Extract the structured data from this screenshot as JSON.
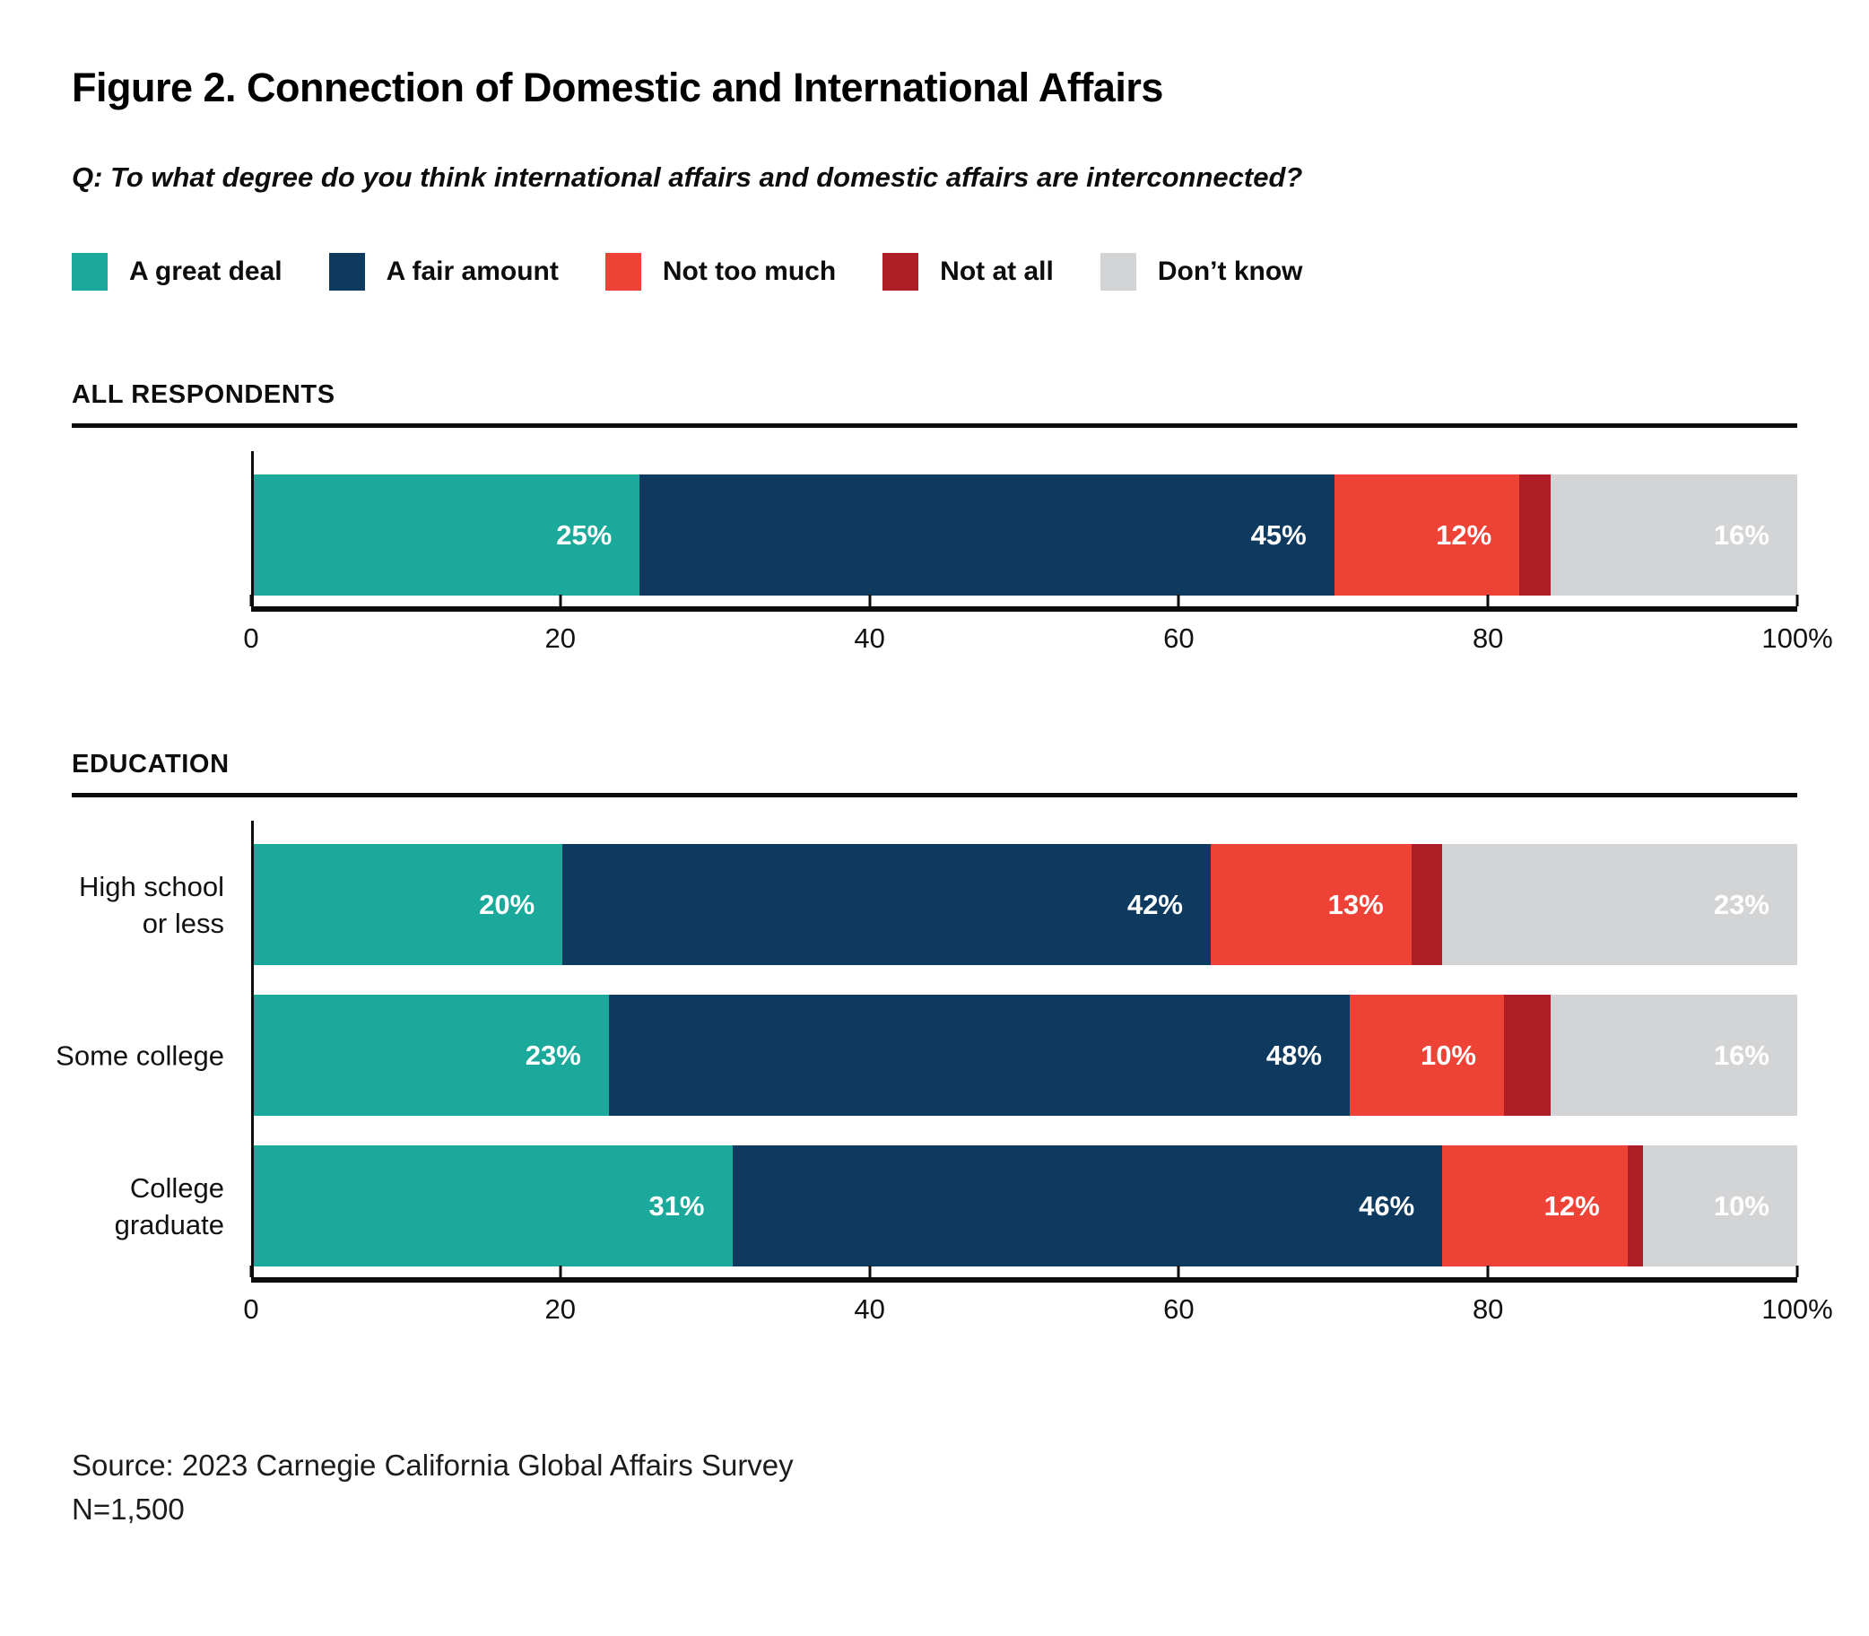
{
  "title": "Figure 2. Connection of Domestic and International Affairs",
  "question": "Q: To what degree do you think international affairs and domestic affairs are interconnected?",
  "legend": {
    "items": [
      {
        "label": "A great deal",
        "color": "#1BA99B"
      },
      {
        "label": "A fair amount",
        "color": "#0E3A5F"
      },
      {
        "label": "Not too much",
        "color": "#EF4237"
      },
      {
        "label": "Not at all",
        "color": "#AF1E26"
      },
      {
        "label": "Don’t know",
        "color": "#D3D4D5"
      }
    ]
  },
  "colors": {
    "a_great_deal": "#1BA99B",
    "a_fair_amount": "#0E3A5F",
    "not_too_much": "#EF4237",
    "not_at_all": "#AF1E26",
    "dont_know": "#D3D4D5",
    "axis": "#0d0d0d"
  },
  "source": {
    "line1": "Source: 2023 Carnegie California Global Affairs Survey",
    "line2": "N=1,500"
  },
  "chart_data": [
    {
      "type": "bar",
      "stacked": true,
      "orientation": "horizontal",
      "section": "ALL RESPONDENTS",
      "categories": [
        []
      ],
      "series": [
        {
          "name": "A great deal",
          "color": "#1BA99B",
          "values": [
            25
          ],
          "labels": [
            "25%"
          ]
        },
        {
          "name": "A fair amount",
          "color": "#0E3A5F",
          "values": [
            45
          ],
          "labels": [
            "45%"
          ]
        },
        {
          "name": "Not too much",
          "color": "#EF4237",
          "values": [
            12
          ],
          "labels": [
            "12%"
          ]
        },
        {
          "name": "Not at all",
          "color": "#AF1E26",
          "values": [
            2
          ],
          "labels": [
            ""
          ]
        },
        {
          "name": "Don’t know",
          "color": "#D3D4D5",
          "values": [
            16
          ],
          "labels": [
            "16%"
          ]
        }
      ],
      "xlim": [
        0,
        100
      ],
      "axis": {
        "ticks": [
          {
            "pos": 0,
            "label": "0"
          },
          {
            "pos": 20,
            "label": "20"
          },
          {
            "pos": 40,
            "label": "40"
          },
          {
            "pos": 60,
            "label": "60"
          },
          {
            "pos": 80,
            "label": "80"
          },
          {
            "pos": 100,
            "label": "100%"
          }
        ]
      }
    },
    {
      "type": "bar",
      "stacked": true,
      "orientation": "horizontal",
      "section": "EDUCATION",
      "categories": [
        [
          "High school",
          "or less"
        ],
        [
          "Some college"
        ],
        [
          "College",
          "graduate"
        ]
      ],
      "series": [
        {
          "name": "A great deal",
          "color": "#1BA99B",
          "values": [
            20,
            23,
            31
          ],
          "labels": [
            "20%",
            "23%",
            "31%"
          ]
        },
        {
          "name": "A fair amount",
          "color": "#0E3A5F",
          "values": [
            42,
            48,
            46
          ],
          "labels": [
            "42%",
            "48%",
            "46%"
          ]
        },
        {
          "name": "Not too much",
          "color": "#EF4237",
          "values": [
            13,
            10,
            12
          ],
          "labels": [
            "13%",
            "10%",
            "12%"
          ]
        },
        {
          "name": "Not at all",
          "color": "#AF1E26",
          "values": [
            2,
            3,
            1
          ],
          "labels": [
            "",
            "",
            ""
          ]
        },
        {
          "name": "Don’t know",
          "color": "#D3D4D5",
          "values": [
            23,
            16,
            10
          ],
          "labels": [
            "23%",
            "16%",
            "10%"
          ]
        }
      ],
      "xlim": [
        0,
        100
      ],
      "axis": {
        "ticks": [
          {
            "pos": 0,
            "label": "0"
          },
          {
            "pos": 20,
            "label": "20"
          },
          {
            "pos": 40,
            "label": "40"
          },
          {
            "pos": 60,
            "label": "60"
          },
          {
            "pos": 80,
            "label": "80"
          },
          {
            "pos": 100,
            "label": "100%"
          }
        ]
      }
    }
  ]
}
